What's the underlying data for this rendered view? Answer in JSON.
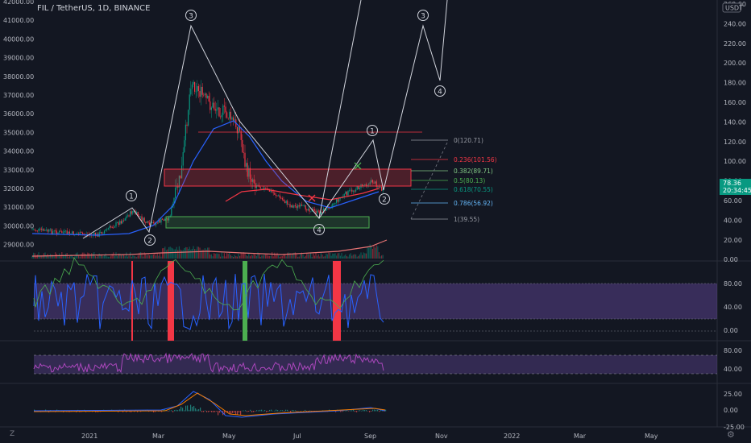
{
  "header": {
    "symbol_title": "FIL / TetherUS, 1D, BINANCE"
  },
  "left_axis": {
    "labels": [
      "42000.00",
      "41000.00",
      "40000.00",
      "39000.00",
      "38000.00",
      "37000.00",
      "36000.00",
      "35000.00",
      "34000.00",
      "33000.00",
      "32000.00",
      "31000.00",
      "30000.00",
      "29000.00"
    ]
  },
  "right_axis": {
    "currency": "USDT",
    "labels": [
      "260.00",
      "240.00",
      "220.00",
      "200.00",
      "180.00",
      "160.00",
      "140.00",
      "120.00",
      "100.00",
      "80.00",
      "60.00",
      "40.00",
      "20.00",
      "0.00"
    ],
    "price_tag": "78.36",
    "countdown": "20:34:45"
  },
  "panel2_axis": [
    "80.00",
    "40.00",
    "0.00"
  ],
  "panel3_axis": [
    "80.00",
    "40.00"
  ],
  "panel4_axis": [
    "25.00",
    "0.00",
    "-25.00"
  ],
  "time_axis": [
    "2021",
    "Mar",
    "May",
    "Jul",
    "Sep",
    "Nov",
    "2022",
    "Mar",
    "May"
  ],
  "fib_levels": [
    {
      "label": "0(120.71)",
      "color": "#9598a1"
    },
    {
      "label": "0.236(101.56)",
      "color": "#f23645"
    },
    {
      "label": "0.382(89.71)",
      "color": "#81c784"
    },
    {
      "label": "0.5(80.13)",
      "color": "#4caf50"
    },
    {
      "label": "0.618(70.55)",
      "color": "#089981"
    },
    {
      "label": "0.786(56.92)",
      "color": "#64b5f6"
    },
    {
      "label": "1(39.55)",
      "color": "#9598a1"
    }
  ],
  "wave_labels": [
    "1",
    "2",
    "3",
    "4",
    "1",
    "2",
    "3",
    "4"
  ],
  "corner": "Z",
  "settings_icon": "gear-icon",
  "colors": {
    "background": "#131722",
    "up": "#089981",
    "down": "#f23645",
    "accent": "#2962ff"
  }
}
